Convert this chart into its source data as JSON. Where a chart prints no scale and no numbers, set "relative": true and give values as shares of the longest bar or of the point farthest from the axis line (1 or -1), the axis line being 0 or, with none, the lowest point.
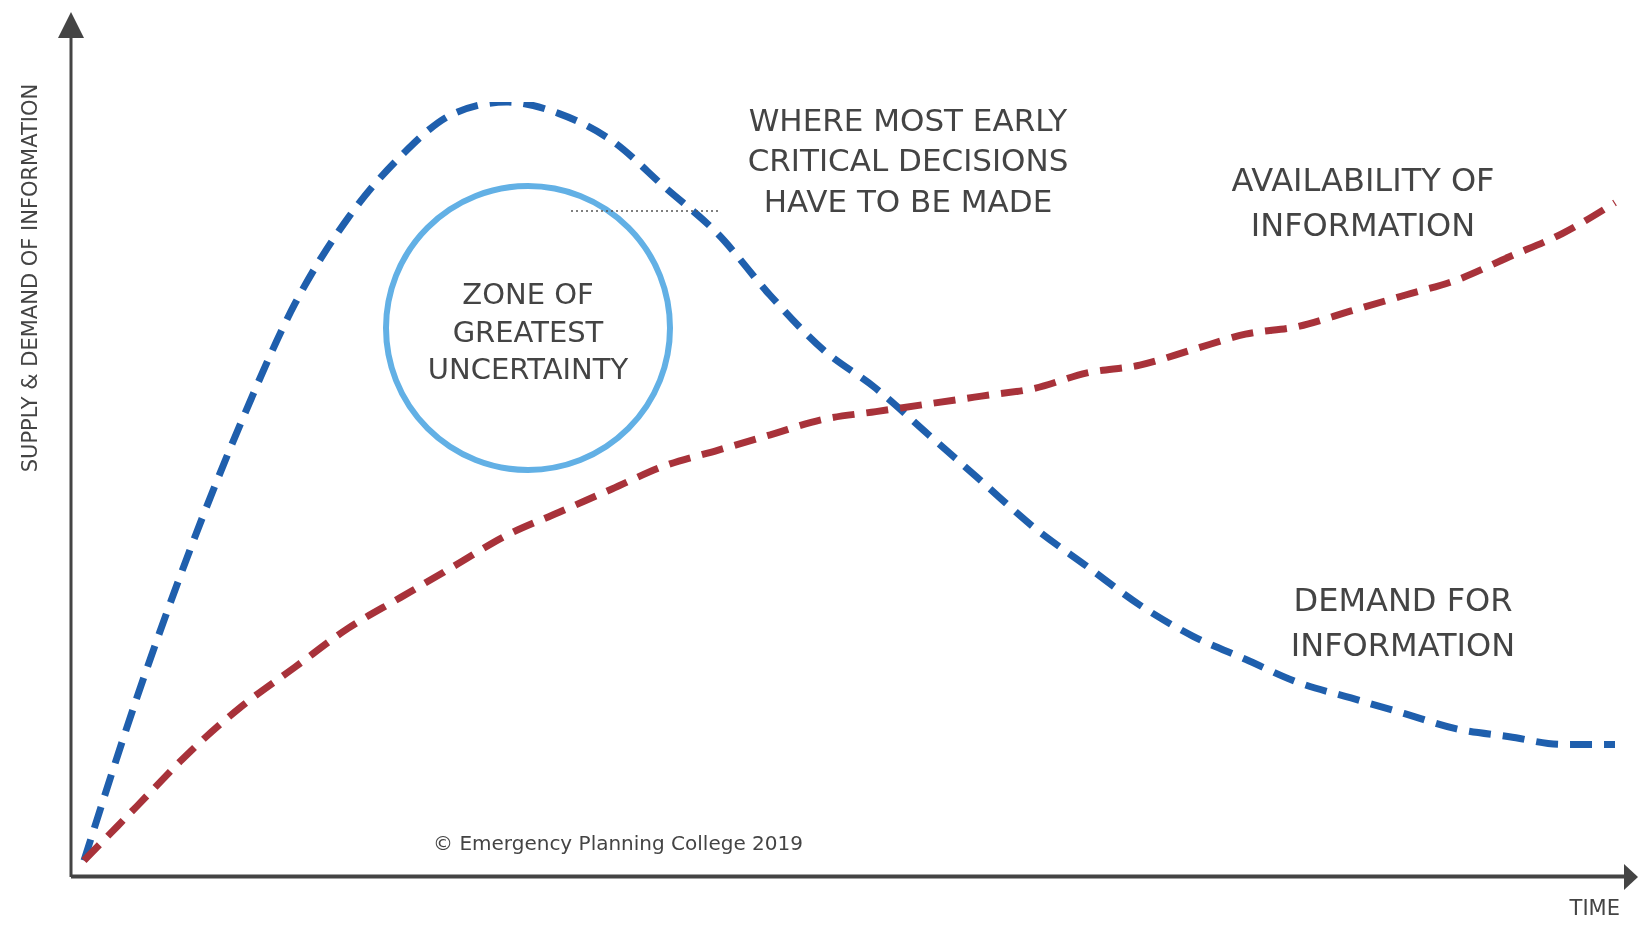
{
  "chart_data": {
    "type": "line",
    "relative": true,
    "xlabel": "TIME",
    "ylabel": "SUPPLY & DEMAND OF INFORMATION",
    "line_style": "dashed",
    "marker": "none",
    "grid": false,
    "legend": false,
    "categories": [
      null,
      null,
      null,
      null,
      null,
      null,
      null,
      null,
      null,
      null,
      null,
      null,
      null,
      null,
      null,
      null,
      null,
      null,
      null,
      null,
      null,
      null,
      null,
      null,
      null,
      null,
      null,
      null,
      null,
      null
    ],
    "series": [
      {
        "name": "DEMAND FOR INFORMATION",
        "color": "#1f5fad",
        "values": [
          0.02,
          0.23,
          0.42,
          0.59,
          0.74,
          0.85,
          0.93,
          0.985,
          1.0,
          0.985,
          0.95,
          0.89,
          0.83,
          0.75,
          0.68,
          0.63,
          0.57,
          0.51,
          0.45,
          0.4,
          0.35,
          0.31,
          0.28,
          0.25,
          0.23,
          0.21,
          0.19,
          0.18,
          0.17,
          0.17
        ]
      },
      {
        "name": "AVAILABILITY OF INFORMATION",
        "color": "#a8323a",
        "values": [
          0.02,
          0.09,
          0.16,
          0.22,
          0.27,
          0.32,
          0.36,
          0.4,
          0.44,
          0.47,
          0.5,
          0.53,
          0.55,
          0.57,
          0.59,
          0.6,
          0.61,
          0.62,
          0.63,
          0.65,
          0.66,
          0.68,
          0.7,
          0.71,
          0.73,
          0.75,
          0.77,
          0.8,
          0.83,
          0.87
        ]
      }
    ],
    "annotations": [
      "WHERE MOST EARLY CRITICAL DECISIONS HAVE TO BE MADE",
      "ZONE OF GREATEST UNCERTAINTY",
      "© Emergency Planning College 2019"
    ]
  }
}
